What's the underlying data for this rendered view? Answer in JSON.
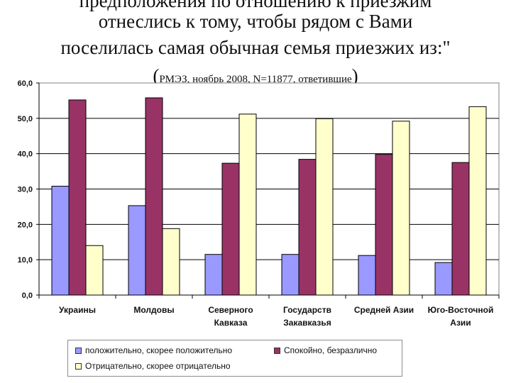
{
  "title_lines": [
    "предположения по отношению к приезжим",
    "отнеслись к тому, чтобы рядом с Вами",
    "поселилась самая обычная семья приезжих из:\""
  ],
  "subtitle_open": "(",
  "subtitle_note": "РМЭЗ, ноябрь 2008, N=11877, ответившие",
  "subtitle_close": ")",
  "colors": {
    "series_1": "#9999ff",
    "series_2": "#993366",
    "series_3": "#ffffcc",
    "plot_bg": "#ffffff",
    "gridline": "#000000"
  },
  "chart_data": {
    "type": "bar",
    "title": "",
    "xlabel": "",
    "ylabel": "",
    "ylim": [
      0,
      60
    ],
    "yticks": [
      "0,0",
      "10,0",
      "20,0",
      "30,0",
      "40,0",
      "50,0",
      "60,0"
    ],
    "grid": true,
    "legend_position": "bottom",
    "categories": [
      [
        "Украины"
      ],
      [
        "Молдовы"
      ],
      [
        "Северного",
        "Кавказа"
      ],
      [
        "Государств",
        "Закавказья"
      ],
      [
        "Средней Азии"
      ],
      [
        "Юго-Восточной",
        "Азии"
      ]
    ],
    "series": [
      {
        "name": "положительно, скорее положительно",
        "values": [
          30.8,
          25.3,
          11.5,
          11.5,
          11.2,
          9.2
        ]
      },
      {
        "name": "Спокойно, безразлично",
        "values": [
          55.2,
          55.8,
          37.3,
          38.4,
          39.8,
          37.5
        ]
      },
      {
        "name": "Отрицательно, скорее отрицательно",
        "values": [
          14.0,
          18.8,
          51.2,
          49.9,
          49.2,
          53.3
        ]
      }
    ]
  }
}
